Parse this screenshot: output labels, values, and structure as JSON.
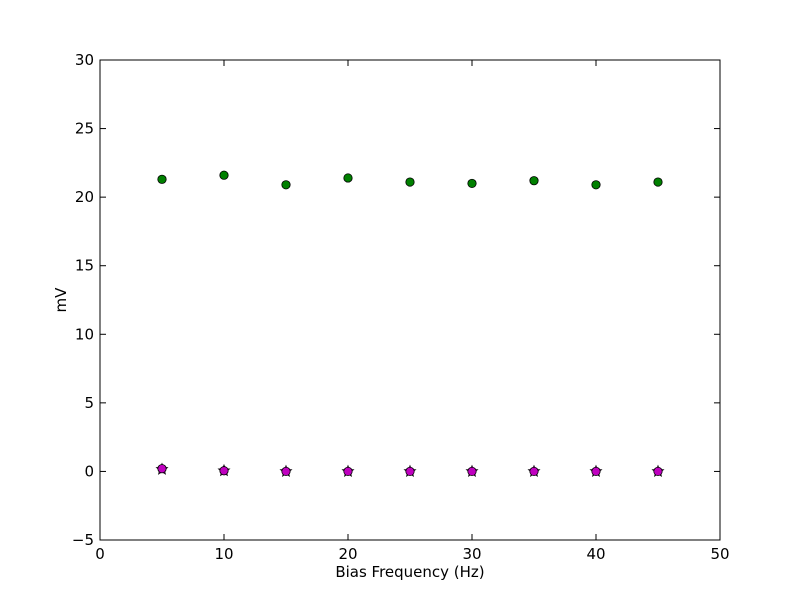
{
  "chart_data": {
    "type": "scatter",
    "title": "",
    "xlabel": "Bias Frequency (Hz)",
    "ylabel": "mV",
    "xlim": [
      0,
      50
    ],
    "ylim": [
      -5,
      30
    ],
    "xticks": [
      0,
      10,
      20,
      30,
      40,
      50
    ],
    "yticks": [
      -5,
      0,
      5,
      10,
      15,
      20,
      25,
      30
    ],
    "grid": false,
    "legend": "none",
    "series": [
      {
        "color": "#008000",
        "marker": "circle",
        "points": [
          {
            "x": 5,
            "y": 21.3
          },
          {
            "x": 10,
            "y": 21.6
          },
          {
            "x": 15,
            "y": 20.9
          },
          {
            "x": 20,
            "y": 21.4
          },
          {
            "x": 25,
            "y": 21.1
          },
          {
            "x": 30,
            "y": 21.0
          },
          {
            "x": 35,
            "y": 21.2
          },
          {
            "x": 40,
            "y": 20.9
          },
          {
            "x": 45,
            "y": 21.1
          }
        ]
      },
      {
        "color": "#7f007f",
        "marker": "star",
        "points": [
          {
            "x": 5,
            "y": 0.15
          },
          {
            "x": 10,
            "y": 0.05
          },
          {
            "x": 15,
            "y": 0.0
          },
          {
            "x": 20,
            "y": 0.0
          },
          {
            "x": 25,
            "y": 0.0
          },
          {
            "x": 30,
            "y": 0.0
          },
          {
            "x": 35,
            "y": 0.0
          },
          {
            "x": 40,
            "y": 0.0
          },
          {
            "x": 45,
            "y": 0.0
          }
        ]
      },
      {
        "color": "#bf00bf",
        "marker": "circle",
        "points": [
          {
            "x": 5,
            "y": 0.2
          },
          {
            "x": 10,
            "y": 0.05
          },
          {
            "x": 15,
            "y": 0.0
          },
          {
            "x": 20,
            "y": 0.0
          },
          {
            "x": 25,
            "y": 0.0
          },
          {
            "x": 30,
            "y": 0.0
          },
          {
            "x": 35,
            "y": 0.0
          },
          {
            "x": 40,
            "y": 0.0
          },
          {
            "x": 45,
            "y": 0.0
          }
        ]
      }
    ]
  }
}
